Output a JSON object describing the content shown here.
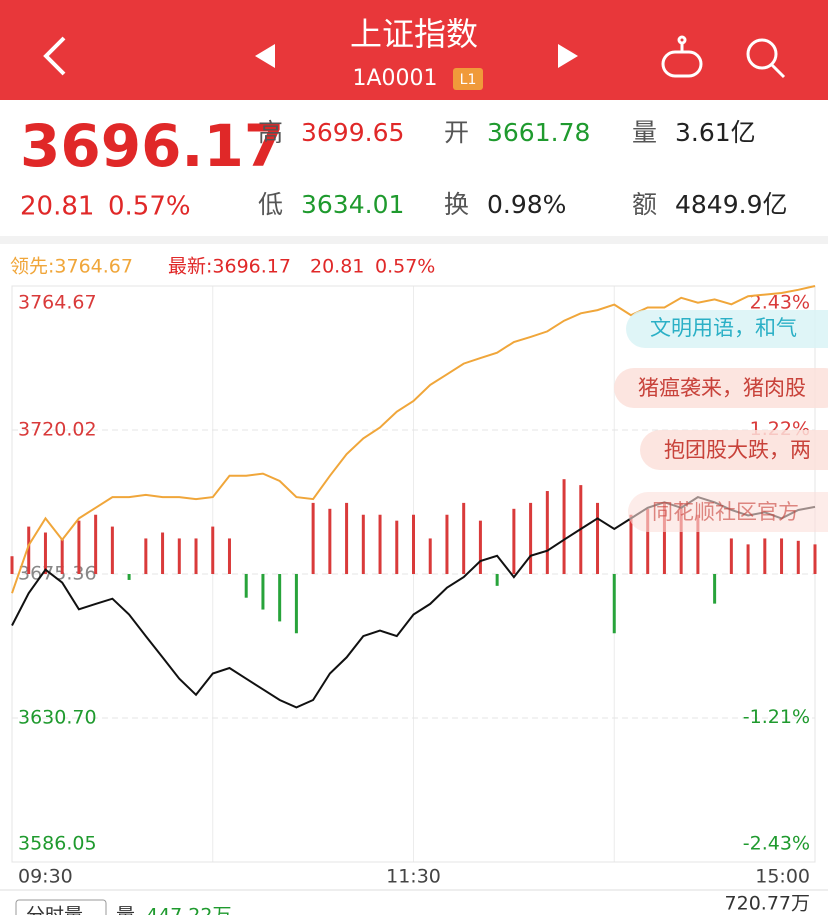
{
  "header": {
    "title": "上证指数",
    "code": "1A0001",
    "badge": "L1"
  },
  "quote": {
    "price": "3696.17",
    "change": "20.81",
    "change_pct": "0.57%",
    "stats": [
      {
        "label": "高",
        "value": "3699.65",
        "color": "#e02828"
      },
      {
        "label": "开",
        "value": "3661.78",
        "color": "#1f9a2e"
      },
      {
        "label": "量",
        "value": "3.61亿",
        "color": "#222222"
      },
      {
        "label": "低",
        "value": "3634.01",
        "color": "#1f9a2e"
      },
      {
        "label": "换",
        "value": "0.98%",
        "color": "#222222"
      },
      {
        "label": "额",
        "value": "4849.9亿",
        "color": "#222222"
      }
    ]
  },
  "chart_data": {
    "type": "line",
    "leader_label": "领先:3764.67",
    "latest_label": "最新:3696.17",
    "latest_change": "20.81",
    "latest_pct": "0.57%",
    "x": [
      0,
      5,
      10,
      15,
      20,
      25,
      30,
      35,
      40,
      45,
      50,
      55,
      60,
      65,
      70,
      75,
      80,
      85,
      90,
      95,
      100,
      105,
      110,
      115,
      120,
      125,
      130,
      135,
      140,
      145,
      150,
      155,
      160,
      165,
      170,
      175,
      180,
      185,
      190,
      195,
      200,
      205,
      210,
      215,
      220,
      225,
      230,
      235,
      240
    ],
    "xlim": [
      0,
      240
    ],
    "xticks": [
      {
        "value": 0,
        "label": "09:30"
      },
      {
        "value": 120,
        "label": "11:30"
      },
      {
        "value": 240,
        "label": "15:00"
      }
    ],
    "xgrid": [
      60,
      120,
      180
    ],
    "ylim": [
      3586.05,
      3764.67
    ],
    "yticks": [
      3764.67,
      3720.02,
      3675.36,
      {
        "value": 3630.7,
        "label": "3630.70"
      },
      3586.05
    ],
    "y2lim": [
      -2.43,
      2.43
    ],
    "y2ticks": [
      {
        "value": 2.43,
        "label": "2.43%"
      },
      {
        "value": 1.22,
        "label": "1.22%"
      },
      {
        "value": -1.21,
        "label": "-1.21%"
      },
      {
        "value": -2.43,
        "label": "-2.43%"
      }
    ],
    "series": [
      {
        "type": "bar",
        "axis": "y2",
        "color": "#d93a3a",
        "negative_color": "#27a33a",
        "values": [
          0.15,
          0.4,
          0.35,
          0.3,
          0.45,
          0.5,
          0.4,
          -0.05,
          0.3,
          0.35,
          0.3,
          0.3,
          0.4,
          0.3,
          -0.2,
          -0.3,
          -0.4,
          -0.5,
          0.6,
          0.55,
          0.6,
          0.5,
          0.5,
          0.45,
          0.5,
          0.3,
          0.5,
          0.6,
          0.45,
          -0.1,
          0.55,
          0.6,
          0.7,
          0.8,
          0.75,
          0.6,
          -0.5,
          0.5,
          0.55,
          0.6,
          0.6,
          0.5,
          -0.25,
          0.3,
          0.25,
          0.3,
          0.3,
          0.28,
          0.25
        ]
      },
      {
        "type": "line",
        "color": "#f0a63a",
        "values": [
          3669.4,
          3684.3,
          3692.6,
          3686.0,
          3692.6,
          3695.9,
          3699.2,
          3699.2,
          3699.9,
          3699.2,
          3699.2,
          3698.6,
          3699.2,
          3705.8,
          3705.8,
          3706.5,
          3704.2,
          3699.2,
          3698.6,
          3705.8,
          3712.5,
          3717.4,
          3720.8,
          3725.7,
          3729.0,
          3734.0,
          3737.3,
          3740.6,
          3742.3,
          3744.0,
          3747.3,
          3748.9,
          3750.6,
          3753.9,
          3756.2,
          3757.2,
          3758.9,
          3755.6,
          3758.0,
          3758.0,
          3761.0,
          3759.5,
          3760.5,
          3759.0,
          3761.5,
          3762.0,
          3762.5,
          3763.5,
          3764.67
        ]
      },
      {
        "type": "line",
        "color": "#111111",
        "values": [
          3659.4,
          3669.4,
          3676.7,
          3672.7,
          3664.4,
          3666.1,
          3667.7,
          3662.8,
          3656.1,
          3649.5,
          3642.9,
          3637.9,
          3644.5,
          3646.2,
          3642.9,
          3639.6,
          3636.3,
          3634.0,
          3636.3,
          3644.5,
          3649.5,
          3656.1,
          3657.8,
          3656.1,
          3662.8,
          3666.1,
          3671.1,
          3674.4,
          3679.4,
          3681.0,
          3674.4,
          3681.0,
          3682.6,
          3686.0,
          3689.3,
          3692.6,
          3689.3,
          3692.6,
          3695.9,
          3697.6,
          3695.9,
          3699.2,
          3697.6,
          3695.2,
          3693.5,
          3694.5,
          3692.6,
          3695.2,
          3696.17
        ]
      }
    ]
  },
  "danmaku": [
    "文明用语，和气",
    "猪瘟袭来，猪肉股",
    "抱团股大跌，两",
    "同花顺社区官方"
  ],
  "volume": {
    "label": "分时量",
    "vol_label": "量",
    "vol_value": "447.22万",
    "max": "720.77万"
  }
}
